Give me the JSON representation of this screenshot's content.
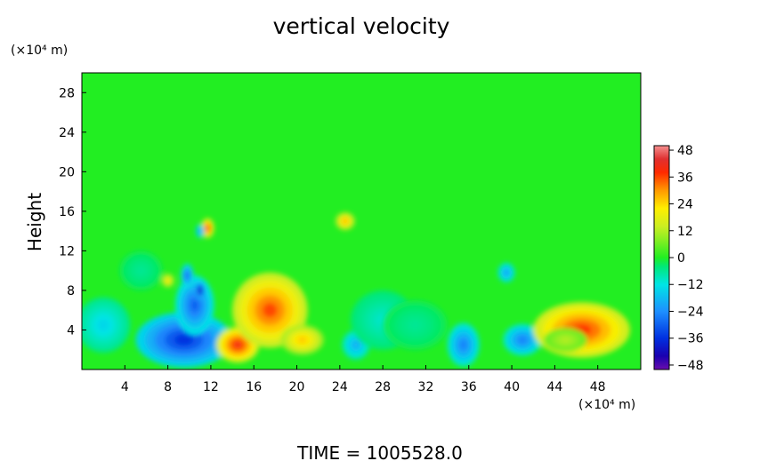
{
  "chart_data": {
    "type": "heatmap",
    "title": "vertical velocity",
    "ylabel": "Height",
    "y_unit": "(×10⁴ m)",
    "x_unit": "(×10⁴ m)",
    "xlim": [
      0,
      52
    ],
    "ylim": [
      0,
      30
    ],
    "x_ticks": [
      4,
      8,
      12,
      16,
      20,
      24,
      28,
      32,
      36,
      40,
      44,
      48
    ],
    "y_ticks": [
      4,
      8,
      12,
      16,
      20,
      24,
      28
    ],
    "colorbar": {
      "ticks": [
        48,
        36,
        24,
        12,
        0,
        -12,
        -24,
        -36,
        -48
      ],
      "range": [
        -50,
        50
      ],
      "stops": [
        {
          "v": -50,
          "color": "#6a0dad"
        },
        {
          "v": -44,
          "color": "#1a00b0"
        },
        {
          "v": -36,
          "color": "#0030e0"
        },
        {
          "v": -24,
          "color": "#1e90ff"
        },
        {
          "v": -12,
          "color": "#00e5e5"
        },
        {
          "v": -4,
          "color": "#00e878"
        },
        {
          "v": 0,
          "color": "#22ee22"
        },
        {
          "v": 8,
          "color": "#88ee22"
        },
        {
          "v": 14,
          "color": "#ccee22"
        },
        {
          "v": 22,
          "color": "#ffee00"
        },
        {
          "v": 30,
          "color": "#ff9900"
        },
        {
          "v": 38,
          "color": "#ff2a00"
        },
        {
          "v": 44,
          "color": "#e03030"
        },
        {
          "v": 50,
          "color": "#f59090"
        }
      ]
    },
    "field_features": [
      {
        "x": 2,
        "y": 4.5,
        "value": -14,
        "rx": 2.5,
        "ry": 2.8
      },
      {
        "x": 9.5,
        "y": 3,
        "value": -36,
        "rx": 4.5,
        "ry": 2.8
      },
      {
        "x": 10.5,
        "y": 6.5,
        "value": -30,
        "rx": 1.8,
        "ry": 3
      },
      {
        "x": 11,
        "y": 8,
        "value": -44,
        "rx": 0.5,
        "ry": 0.9
      },
      {
        "x": 9.8,
        "y": 9.5,
        "value": -30,
        "rx": 0.6,
        "ry": 1.2
      },
      {
        "x": 8,
        "y": 9,
        "value": 22,
        "rx": 0.6,
        "ry": 0.7
      },
      {
        "x": 11.7,
        "y": 14.3,
        "value": 38,
        "rx": 0.6,
        "ry": 1
      },
      {
        "x": 11,
        "y": 14,
        "value": -24,
        "rx": 0.4,
        "ry": 0.7
      },
      {
        "x": 14.5,
        "y": 2.5,
        "value": 40,
        "rx": 2,
        "ry": 1.8
      },
      {
        "x": 17.5,
        "y": 6,
        "value": 36,
        "rx": 3.5,
        "ry": 3.8
      },
      {
        "x": 20.5,
        "y": 3,
        "value": 26,
        "rx": 2,
        "ry": 1.5
      },
      {
        "x": 24.5,
        "y": 15,
        "value": 28,
        "rx": 0.9,
        "ry": 0.9
      },
      {
        "x": 25.5,
        "y": 2.5,
        "value": -20,
        "rx": 1.3,
        "ry": 1.5
      },
      {
        "x": 28,
        "y": 5,
        "value": -10,
        "rx": 3,
        "ry": 3
      },
      {
        "x": 35.5,
        "y": 2.5,
        "value": -26,
        "rx": 1.5,
        "ry": 2.2
      },
      {
        "x": 39.5,
        "y": 9.8,
        "value": -22,
        "rx": 0.8,
        "ry": 1
      },
      {
        "x": 41,
        "y": 3,
        "value": -26,
        "rx": 1.8,
        "ry": 1.6
      },
      {
        "x": 46.5,
        "y": 4,
        "value": 38,
        "rx": 4.5,
        "ry": 2.8
      },
      {
        "x": 45,
        "y": 3,
        "value": 12,
        "rx": 2,
        "ry": 1.2
      },
      {
        "x": 31,
        "y": 4.5,
        "value": -6,
        "rx": 3,
        "ry": 2.5
      },
      {
        "x": 5.5,
        "y": 10,
        "value": -6,
        "rx": 2,
        "ry": 2
      }
    ]
  },
  "footer": {
    "time_label": "TIME  =  1005528.0"
  }
}
